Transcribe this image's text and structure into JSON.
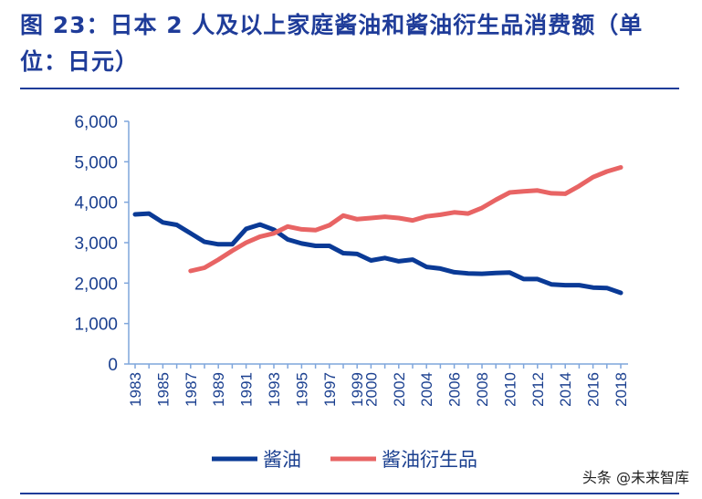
{
  "title": "图 23：日本 2 人及以上家庭酱油和酱油衍生品消费额（单位：日元）",
  "watermark": "头条 @未来智库",
  "chart_data": {
    "type": "line",
    "title": "图 23：日本 2 人及以上家庭酱油和酱油衍生品消费额（单位：日元）",
    "x": [
      1983,
      1984,
      1985,
      1986,
      1987,
      1988,
      1989,
      1990,
      1991,
      1992,
      1993,
      1994,
      1995,
      1996,
      1997,
      1998,
      1999,
      2000,
      2001,
      2002,
      2003,
      2004,
      2005,
      2006,
      2007,
      2008,
      2009,
      2010,
      2011,
      2012,
      2013,
      2014,
      2015,
      2016,
      2017,
      2018
    ],
    "x_tick_labels": [
      "1983",
      "1985",
      "1987",
      "1989",
      "1991",
      "1993",
      "1995",
      "1997",
      "1999",
      "2000",
      "2002",
      "2004",
      "2006",
      "2008",
      "2010",
      "2012",
      "2014",
      "2016",
      "2018"
    ],
    "y_tick_labels": [
      "0",
      "1,000",
      "2,000",
      "3,000",
      "4,000",
      "5,000",
      "6,000"
    ],
    "ylim": [
      0,
      6000
    ],
    "grid": false,
    "legend": "bottom",
    "series": [
      {
        "name": "酱油",
        "color": "#0a3a96",
        "values": [
          3700,
          3720,
          3500,
          3440,
          3230,
          3020,
          2960,
          2960,
          3340,
          3450,
          3320,
          3080,
          2980,
          2920,
          2920,
          2740,
          2720,
          2560,
          2620,
          2540,
          2580,
          2400,
          2360,
          2270,
          2240,
          2230,
          2250,
          2260,
          2100,
          2100,
          1970,
          1950,
          1950,
          1890,
          1880,
          1760
        ]
      },
      {
        "name": "酱油衍生品",
        "color": "#e86464",
        "values": [
          null,
          null,
          null,
          null,
          2300,
          2380,
          2580,
          2800,
          3000,
          3150,
          3230,
          3400,
          3330,
          3310,
          3430,
          3670,
          3580,
          3610,
          3640,
          3610,
          3550,
          3650,
          3690,
          3750,
          3720,
          3860,
          4060,
          4240,
          4270,
          4290,
          4220,
          4210,
          4400,
          4620,
          4760,
          4860
        ]
      }
    ]
  }
}
